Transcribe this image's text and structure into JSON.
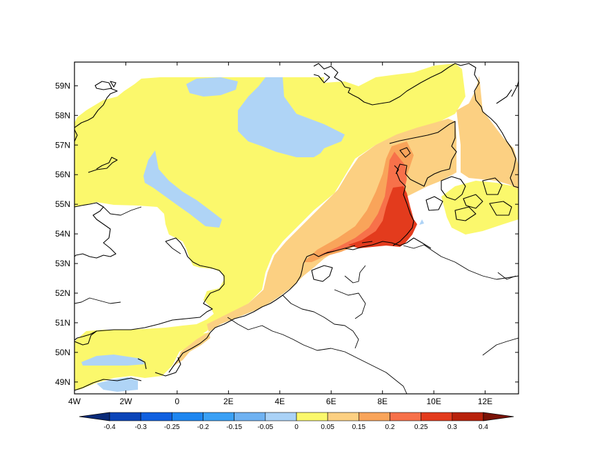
{
  "map": {
    "lon_range": [
      -4,
      13.3
    ],
    "lat_range": [
      48.6,
      59.8
    ],
    "x_ticks": [
      {
        "value": -4,
        "label": "4W"
      },
      {
        "value": -2,
        "label": "2W"
      },
      {
        "value": 0,
        "label": "0"
      },
      {
        "value": 2,
        "label": "2E"
      },
      {
        "value": 4,
        "label": "4E"
      },
      {
        "value": 6,
        "label": "6E"
      },
      {
        "value": 8,
        "label": "8E"
      },
      {
        "value": 10,
        "label": "10E"
      },
      {
        "value": 12,
        "label": "12E"
      }
    ],
    "y_ticks": [
      {
        "value": 49,
        "label": "49N"
      },
      {
        "value": 50,
        "label": "50N"
      },
      {
        "value": 51,
        "label": "51N"
      },
      {
        "value": 52,
        "label": "52N"
      },
      {
        "value": 53,
        "label": "53N"
      },
      {
        "value": 54,
        "label": "54N"
      },
      {
        "value": 55,
        "label": "55N"
      },
      {
        "value": 56,
        "label": "56N"
      },
      {
        "value": 57,
        "label": "57N"
      },
      {
        "value": 58,
        "label": "58N"
      },
      {
        "value": 59,
        "label": "59N"
      }
    ]
  },
  "colorbar": {
    "levels": [
      "-0.4",
      "-0.3",
      "-0.25",
      "-0.2",
      "-0.15",
      "-0.05",
      "0",
      "0.05",
      "0.15",
      "0.2",
      "0.25",
      "0.3",
      "0.4"
    ],
    "colors": [
      "#0a2a78",
      "#0b44b8",
      "#1060e0",
      "#1e86f0",
      "#3aa0f5",
      "#6fb2f2",
      "#aad2f7",
      "#fbf86c",
      "#fcd082",
      "#f9a45a",
      "#f7714a",
      "#e33b1d",
      "#b8220c",
      "#7a1206"
    ]
  },
  "field_colors": {
    "negative": "#afd4f6",
    "level_0_005": "#fbf86c",
    "level_005_015": "#fcd082",
    "level_015_02": "#f9a45a",
    "level_02_025": "#f7714a",
    "level_025_03": "#e33b1d"
  }
}
